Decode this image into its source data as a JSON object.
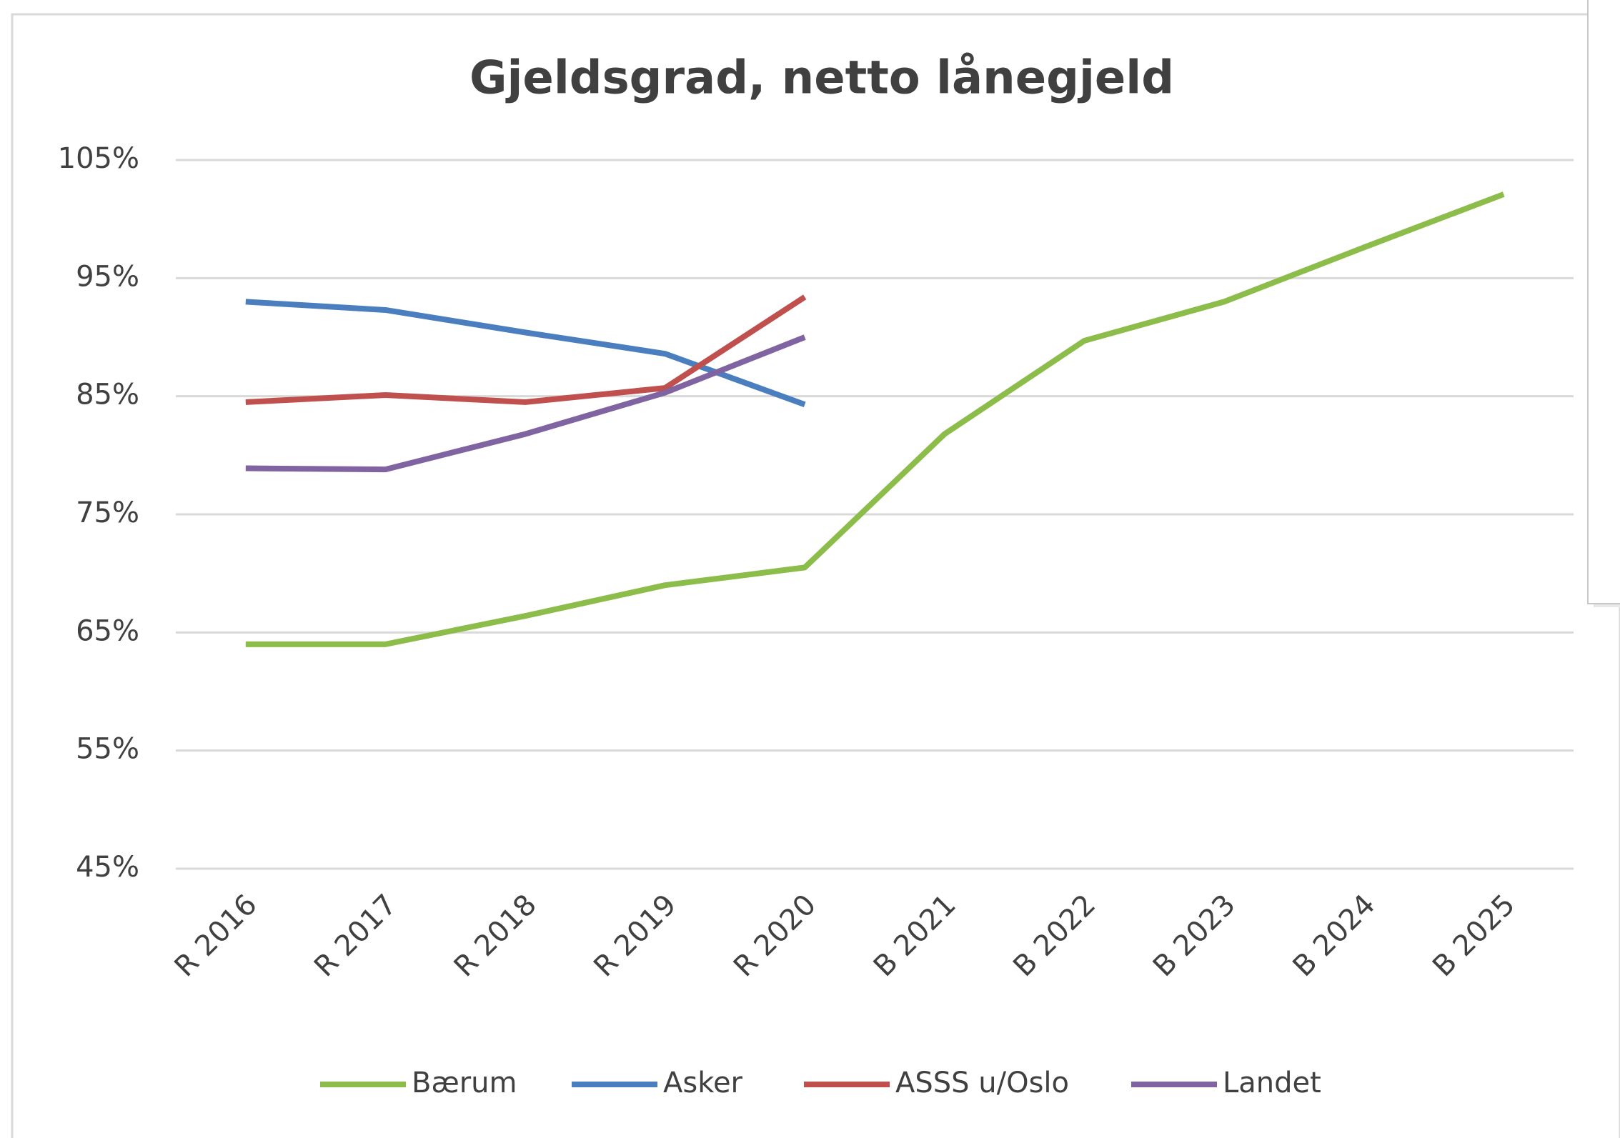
{
  "chart_data": {
    "type": "line",
    "title": "Gjeldsgrad, netto lånegjeld",
    "categories": [
      "R 2016",
      "R 2017",
      "R 2018",
      "R 2019",
      "R 2020",
      "B 2021",
      "B 2022",
      "B 2023",
      "B 2024",
      "B 2025"
    ],
    "series": [
      {
        "name": "Bærum",
        "color": "#8cbd4a",
        "values": [
          64,
          64,
          66.4,
          69,
          70.5,
          81.8,
          89.7,
          93,
          97.6,
          102.1
        ]
      },
      {
        "name": "Asker",
        "color": "#4a7ebf",
        "values": [
          93,
          92.3,
          90.4,
          88.6,
          84.3,
          null,
          null,
          null,
          null,
          null
        ]
      },
      {
        "name": "ASSS u/Oslo",
        "color": "#c0504d",
        "values": [
          84.5,
          85.1,
          84.5,
          85.7,
          93.4,
          null,
          null,
          null,
          null,
          null
        ]
      },
      {
        "name": "Landet",
        "color": "#8064a2",
        "values": [
          78.9,
          78.8,
          81.8,
          85.3,
          90,
          null,
          null,
          null,
          null,
          null
        ]
      }
    ],
    "ylim": [
      45,
      105
    ],
    "yticks": [
      {
        "value": 45,
        "label": "45%"
      },
      {
        "value": 55,
        "label": "55%"
      },
      {
        "value": 65,
        "label": "65%"
      },
      {
        "value": 75,
        "label": "75%"
      },
      {
        "value": 85,
        "label": "85%"
      },
      {
        "value": 95,
        "label": "95%"
      },
      {
        "value": 105,
        "label": "105%"
      }
    ],
    "grid": true,
    "legend": "bottom"
  }
}
